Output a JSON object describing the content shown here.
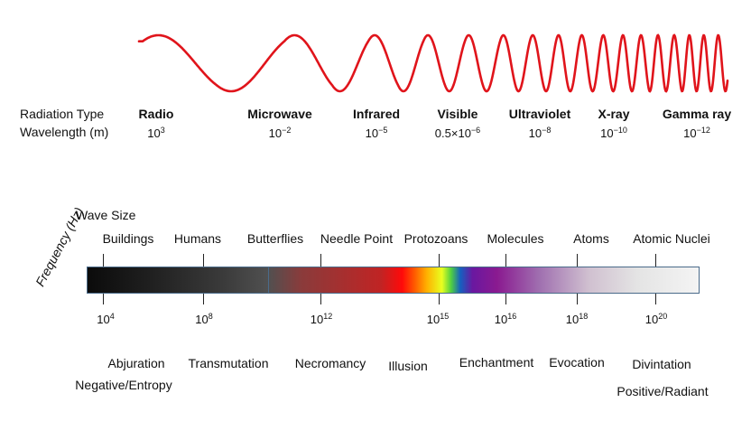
{
  "wave": {
    "color": "#e0141b"
  },
  "radiation": {
    "type_label": "Radiation Type",
    "wavelength_label": "Wavelength (m)",
    "items": [
      {
        "name": "Radio",
        "base": "10",
        "exp": "3"
      },
      {
        "name": "Microwave",
        "base": "10",
        "exp": "−2"
      },
      {
        "name": "Infrared",
        "base": "10",
        "exp": "−5"
      },
      {
        "name": "Visible",
        "base": "0.5×10",
        "exp": "−6"
      },
      {
        "name": "Ultraviolet",
        "base": "10",
        "exp": "−8"
      },
      {
        "name": "X-ray",
        "base": "10",
        "exp": "−10"
      },
      {
        "name": "Gamma ray",
        "base": "10",
        "exp": "−12"
      }
    ]
  },
  "wave_size": {
    "title": "Wave Size",
    "items": [
      "Buildings",
      "Humans",
      "Butterflies",
      "Needle Point",
      "Protozoans",
      "Molecules",
      "Atoms",
      "Atomic Nuclei"
    ]
  },
  "frequency": {
    "axis_title": "Frequency (Hz)",
    "ticks": [
      {
        "base": "10",
        "exp": "4"
      },
      {
        "base": "10",
        "exp": "8"
      },
      {
        "base": "10",
        "exp": "12"
      },
      {
        "base": "10",
        "exp": "15"
      },
      {
        "base": "10",
        "exp": "16"
      },
      {
        "base": "10",
        "exp": "18"
      },
      {
        "base": "10",
        "exp": "20"
      }
    ]
  },
  "schools": [
    "Abjuration",
    "Negative/Entropy",
    "Transmutation",
    "Necromancy",
    "Illusion",
    "Enchantment",
    "Evocation",
    "Divintation",
    "Positive/Radiant"
  ]
}
